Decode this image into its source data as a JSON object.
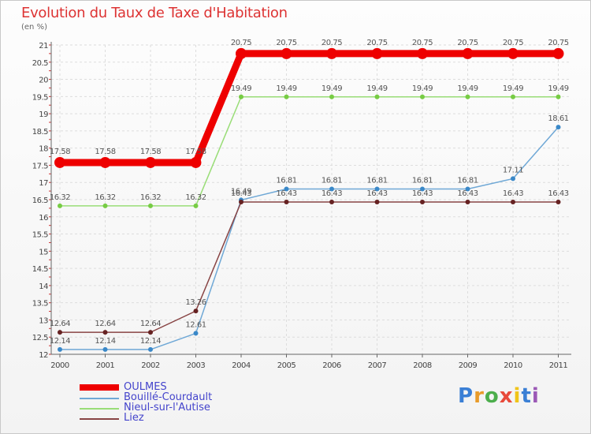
{
  "chart_data": {
    "type": "line",
    "title": "Evolution du Taux de Taxe d'Habitation",
    "subtitle": "(en %)",
    "x": [
      "2000",
      "2001",
      "2002",
      "2003",
      "2004",
      "2005",
      "2006",
      "2007",
      "2008",
      "2009",
      "2010",
      "2011"
    ],
    "ylim": [
      12,
      21
    ],
    "yticks": [
      "12",
      "12.5",
      "13",
      "13.5",
      "14",
      "14.5",
      "15",
      "15.5",
      "16",
      "16.5",
      "17",
      "17.5",
      "18",
      "18.5",
      "19",
      "19.5",
      "20",
      "20.5",
      "21"
    ],
    "grid": true,
    "legend_position": "bottom-left",
    "series": [
      {
        "name": "OULMES",
        "color": "#ee0000",
        "values": [
          17.58,
          17.58,
          17.58,
          17.58,
          20.75,
          20.75,
          20.75,
          20.75,
          20.75,
          20.75,
          20.75,
          20.75
        ]
      },
      {
        "name": "Bouillé-Courdault",
        "color": "#6fa8d6",
        "marker_color": "#3a88c8",
        "values": [
          12.14,
          12.14,
          12.14,
          12.61,
          16.49,
          16.81,
          16.81,
          16.81,
          16.81,
          16.81,
          17.11,
          18.61
        ]
      },
      {
        "name": "Nieul-sur-l'Autise",
        "color": "#99dd77",
        "marker_color": "#77cc44",
        "values": [
          16.32,
          16.32,
          16.32,
          16.32,
          19.49,
          19.49,
          19.49,
          19.49,
          19.49,
          19.49,
          19.49,
          19.49
        ]
      },
      {
        "name": "Liez",
        "color": "#884444",
        "marker_color": "#662222",
        "values": [
          12.64,
          12.64,
          12.64,
          13.26,
          16.43,
          16.43,
          16.43,
          16.43,
          16.43,
          16.43,
          16.43,
          16.43
        ]
      }
    ]
  },
  "logo": {
    "letters": [
      "P",
      "r",
      "o",
      "x",
      "i",
      "t",
      "i"
    ]
  }
}
